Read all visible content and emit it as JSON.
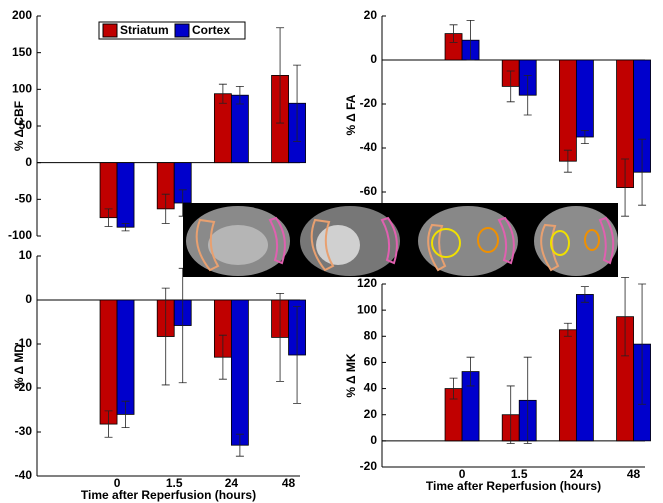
{
  "chart_data": [
    {
      "type": "bar",
      "ylabel": "% Δ CBF",
      "ylim": [
        -100,
        200
      ],
      "yticks": [
        -100,
        -50,
        0,
        50,
        100,
        150,
        200
      ],
      "legend": "top-left",
      "series": [
        {
          "name": "Striatum",
          "color": "#c00000",
          "values": [
            -75,
            -63,
            94,
            119
          ],
          "errors": [
            12,
            20,
            13,
            65
          ]
        },
        {
          "name": "Cortex",
          "color": "#0000cc",
          "values": [
            -88,
            -55,
            92,
            81
          ],
          "errors": [
            5,
            18,
            12,
            52
          ]
        }
      ]
    },
    {
      "type": "bar",
      "ylabel": "% Δ FA",
      "ylim": [
        -70,
        20
      ],
      "yticks": [
        -60,
        -40,
        -20,
        0,
        20
      ],
      "series": [
        {
          "color": "#c00000",
          "values": [
            12,
            -12,
            -46,
            -58
          ],
          "errors": [
            4,
            7,
            5,
            13
          ]
        },
        {
          "color": "#0000cc",
          "values": [
            9,
            -16,
            -35,
            -51
          ],
          "errors": [
            9,
            9,
            3,
            15
          ]
        }
      ]
    },
    {
      "type": "bar",
      "ylabel": "% Δ MD",
      "xlabel": "Time after Reperfusion (hours)",
      "ylim": [
        -40,
        10
      ],
      "yticks": [
        -40,
        -30,
        -20,
        -10,
        0,
        10
      ],
      "categories": [
        "0",
        "1.5",
        "24",
        "48"
      ],
      "series": [
        {
          "color": "#c00000",
          "values": [
            -28.2,
            -8.3,
            -13,
            -8.5
          ],
          "errors": [
            3,
            11,
            5,
            10
          ]
        },
        {
          "color": "#0000cc",
          "values": [
            -26,
            -5.8,
            -33,
            -12.5
          ],
          "errors": [
            3,
            13,
            2.5,
            11
          ]
        }
      ]
    },
    {
      "type": "bar",
      "ylabel": "% Δ MK",
      "xlabel": "Time after Reperfusion (hours)",
      "ylim": [
        -20,
        120
      ],
      "yticks": [
        -20,
        0,
        20,
        40,
        60,
        80,
        100,
        120
      ],
      "categories": [
        "0",
        "1.5",
        "24",
        "48"
      ],
      "series": [
        {
          "color": "#c00000",
          "values": [
            40,
            20,
            85,
            95
          ],
          "errors": [
            8,
            22,
            5,
            30
          ]
        },
        {
          "color": "#0000cc",
          "values": [
            53,
            31,
            112,
            74
          ],
          "errors": [
            11,
            33,
            6,
            46
          ]
        }
      ]
    }
  ]
}
